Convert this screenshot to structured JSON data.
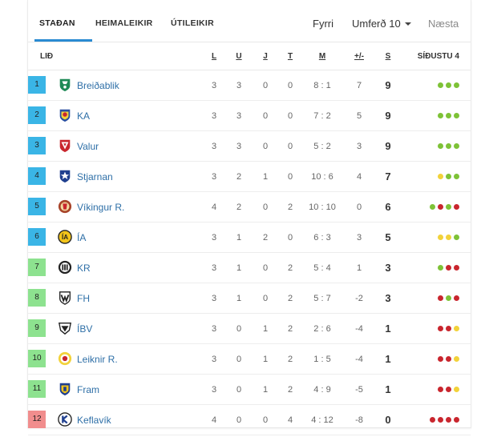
{
  "tabs": [
    {
      "label": "STAÐAN",
      "active": true
    },
    {
      "label": "HEIMALEIKIR",
      "active": false
    },
    {
      "label": "ÚTILEIKIR",
      "active": false
    }
  ],
  "round_nav": {
    "prev": "Fyrri",
    "current": "Umferð 10",
    "next": "Næsta"
  },
  "columns": {
    "team": "LIÐ",
    "played": "L",
    "won": "U",
    "drawn": "J",
    "lost": "T",
    "goals": "M",
    "diff": "+/-",
    "points": "S",
    "form": "SÍÐUSTU 4"
  },
  "colors": {
    "pos_blue": "#3ab5e6",
    "pos_green": "#8de28f",
    "pos_red": "#f18d8d",
    "win": "#7ec237",
    "draw": "#f2d23a",
    "loss": "#c9262e",
    "tab_underline": "#2a8bd2",
    "team_link": "#2e6fa7"
  },
  "teams": [
    {
      "pos": "1",
      "name": "Breiðablik",
      "p": "3",
      "w": "3",
      "d": "0",
      "l": "0",
      "goals": "8 : 1",
      "diff": "7",
      "pts": "9",
      "zone": "pos_blue",
      "crest": "breidablik-crest-icon",
      "form": [
        "W",
        "W",
        "W"
      ]
    },
    {
      "pos": "2",
      "name": "KA",
      "p": "3",
      "w": "3",
      "d": "0",
      "l": "0",
      "goals": "7 : 2",
      "diff": "5",
      "pts": "9",
      "zone": "pos_blue",
      "crest": "ka-crest-icon",
      "form": [
        "W",
        "W",
        "W"
      ]
    },
    {
      "pos": "3",
      "name": "Valur",
      "p": "3",
      "w": "3",
      "d": "0",
      "l": "0",
      "goals": "5 : 2",
      "diff": "3",
      "pts": "9",
      "zone": "pos_blue",
      "crest": "valur-crest-icon",
      "form": [
        "W",
        "W",
        "W"
      ]
    },
    {
      "pos": "4",
      "name": "Stjarnan",
      "p": "3",
      "w": "2",
      "d": "1",
      "l": "0",
      "goals": "10 : 6",
      "diff": "4",
      "pts": "7",
      "zone": "pos_blue",
      "crest": "stjarnan-crest-icon",
      "form": [
        "D",
        "W",
        "W"
      ]
    },
    {
      "pos": "5",
      "name": "Víkingur R.",
      "p": "4",
      "w": "2",
      "d": "0",
      "l": "2",
      "goals": "10 : 10",
      "diff": "0",
      "pts": "6",
      "zone": "pos_blue",
      "crest": "vikingur-crest-icon",
      "form": [
        "W",
        "L",
        "W",
        "L"
      ]
    },
    {
      "pos": "6",
      "name": "ÍA",
      "p": "3",
      "w": "1",
      "d": "2",
      "l": "0",
      "goals": "6 : 3",
      "diff": "3",
      "pts": "5",
      "zone": "pos_blue",
      "crest": "ia-crest-icon",
      "form": [
        "D",
        "D",
        "W"
      ]
    },
    {
      "pos": "7",
      "name": "KR",
      "p": "3",
      "w": "1",
      "d": "0",
      "l": "2",
      "goals": "5 : 4",
      "diff": "1",
      "pts": "3",
      "zone": "pos_green",
      "crest": "kr-crest-icon",
      "form": [
        "W",
        "L",
        "L"
      ]
    },
    {
      "pos": "8",
      "name": "FH",
      "p": "3",
      "w": "1",
      "d": "0",
      "l": "2",
      "goals": "5 : 7",
      "diff": "-2",
      "pts": "3",
      "zone": "pos_green",
      "crest": "fh-crest-icon",
      "form": [
        "L",
        "W",
        "L"
      ]
    },
    {
      "pos": "9",
      "name": "ÍBV",
      "p": "3",
      "w": "0",
      "d": "1",
      "l": "2",
      "goals": "2 : 6",
      "diff": "-4",
      "pts": "1",
      "zone": "pos_green",
      "crest": "ibv-crest-icon",
      "form": [
        "L",
        "L",
        "D"
      ]
    },
    {
      "pos": "10",
      "name": "Leiknir R.",
      "p": "3",
      "w": "0",
      "d": "1",
      "l": "2",
      "goals": "1 : 5",
      "diff": "-4",
      "pts": "1",
      "zone": "pos_green",
      "crest": "leiknir-crest-icon",
      "form": [
        "L",
        "L",
        "D"
      ]
    },
    {
      "pos": "11",
      "name": "Fram",
      "p": "3",
      "w": "0",
      "d": "1",
      "l": "2",
      "goals": "4 : 9",
      "diff": "-5",
      "pts": "1",
      "zone": "pos_green",
      "crest": "fram-crest-icon",
      "form": [
        "L",
        "L",
        "D"
      ]
    },
    {
      "pos": "12",
      "name": "Keflavík",
      "p": "4",
      "w": "0",
      "d": "0",
      "l": "4",
      "goals": "4 : 12",
      "diff": "-8",
      "pts": "0",
      "zone": "pos_red",
      "crest": "keflavik-crest-icon",
      "form": [
        "L",
        "L",
        "L",
        "L"
      ]
    }
  ]
}
